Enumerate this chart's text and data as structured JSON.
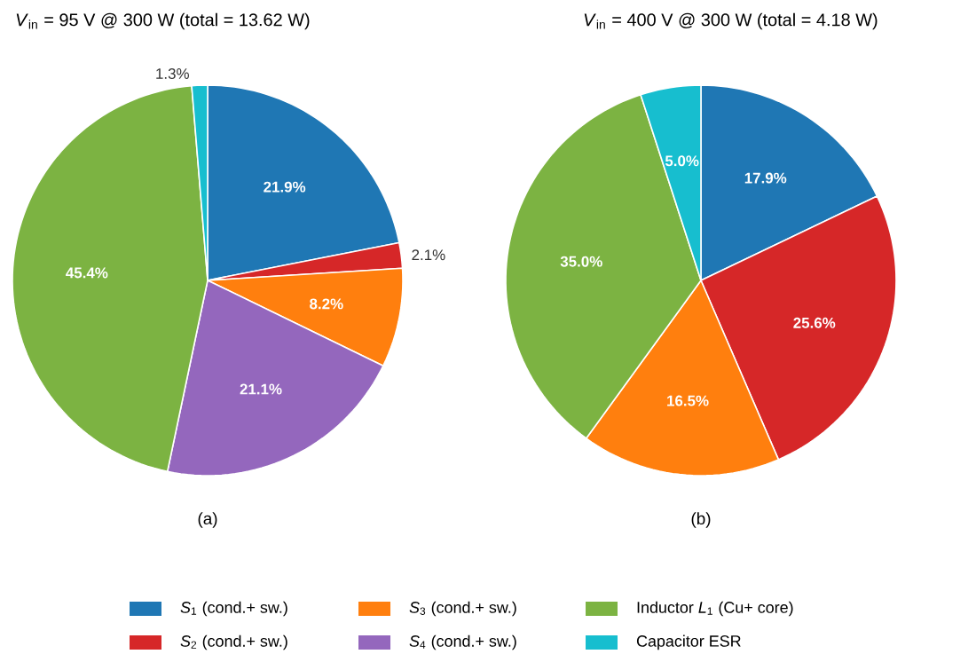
{
  "chart_data": [
    {
      "type": "pie",
      "title": "*V*$_{in}$ = 95 V @ 300 W (total = 13.62 W)",
      "annotations": [
        "(a)"
      ],
      "categories": [
        "*S*$_{1}$ (cond.+ sw.)",
        "*S*$_{2}$ (cond.+ sw.)",
        "*S*$_{3}$ (cond.+ sw.)",
        "*S*$_{4}$ (cond.+ sw.)",
        "Inductor *L*$_{1}$ (Cu+ core)",
        "Capacitor ESR"
      ],
      "values": [
        21.9,
        2.1,
        8.2,
        21.1,
        45.4,
        1.3
      ],
      "value_labels": [
        "21.9%",
        "2.1%",
        "8.2%",
        "21.1%",
        "45.4%",
        "1.3%"
      ],
      "colors": [
        "#1f77b4",
        "#d62728",
        "#ff7f0e",
        "#9467bd",
        "#7cb342",
        "#17becf"
      ],
      "legend": "bottom"
    },
    {
      "type": "pie",
      "title": "*V*$_{in}$ = 400 V @ 300 W (total = 4.18 W)",
      "annotations": [
        "(b)"
      ],
      "categories": [
        null,
        null,
        null,
        null,
        null
      ],
      "values": [
        17.9,
        25.6,
        16.5,
        35.0,
        5.0
      ],
      "value_labels": [
        "17.9%",
        "25.6%",
        "16.5%",
        "35.0%",
        "5.0%"
      ],
      "colors": [
        "#1f77b4",
        "#d62728",
        "#ff7f0e",
        "#7cb342",
        "#17becf"
      ]
    }
  ]
}
